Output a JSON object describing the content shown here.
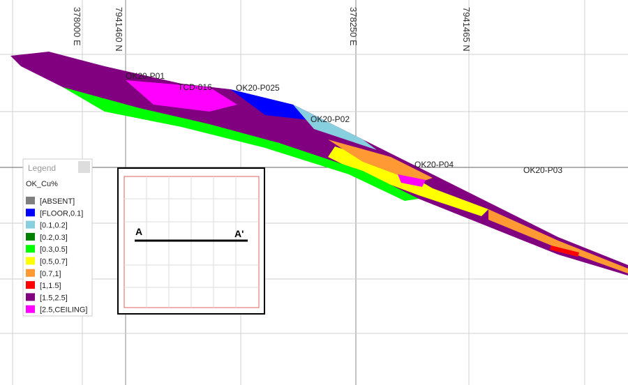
{
  "grid_labels": [
    "378000 E",
    "7941460 N",
    "378250 E",
    "7941465 N"
  ],
  "drillholes": [
    "OK20-P01",
    "TCD-016",
    "OK20-P025",
    "OK20-P02",
    "OK20-P04",
    "OK20-P03"
  ],
  "legend": {
    "title": "Legend",
    "field": "OK_Cu%",
    "items": [
      {
        "label": "[ABSENT]",
        "color": "#808080"
      },
      {
        "label": "[FLOOR,0.1]",
        "color": "#0000ff"
      },
      {
        "label": "[0.1,0.2]",
        "color": "#87cede"
      },
      {
        "label": "[0.2,0.3]",
        "color": "#008000"
      },
      {
        "label": "[0.3,0.5]",
        "color": "#00ff00"
      },
      {
        "label": "[0.5,0.7]",
        "color": "#ffff00"
      },
      {
        "label": "[0.7,1]",
        "color": "#ff9933"
      },
      {
        "label": "[1,1.5]",
        "color": "#ff0000"
      },
      {
        "label": "[1.5,2.5]",
        "color": "#800080"
      },
      {
        "label": "[2.5,CEILING]",
        "color": "#ff00ff"
      }
    ]
  },
  "inset": {
    "start_label": "A",
    "end_label": "A'"
  }
}
